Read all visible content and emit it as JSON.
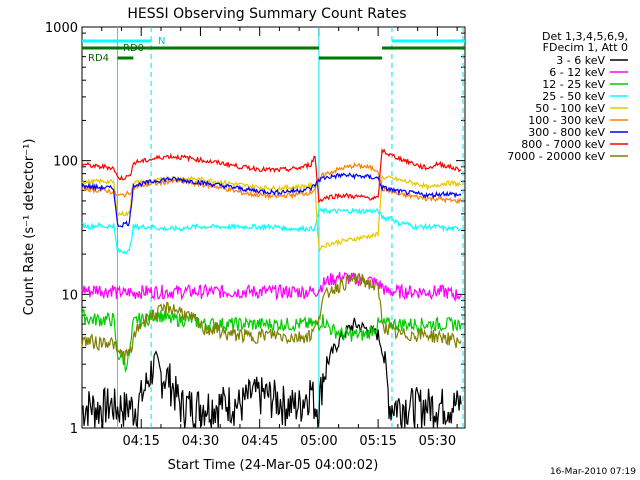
{
  "chart_data": {
    "type": "line",
    "title": "HESSI Observing Summary Count Rates",
    "xlabel": "Start Time (24-Mar-05 04:00:02)",
    "ylabel": "Count Rate (s⁻¹ detector⁻¹)",
    "yscale": "log",
    "ylim": [
      1,
      1000
    ],
    "xlim_minutes": [
      0,
      97
    ],
    "x_tick_labels": [
      "04:15",
      "04:30",
      "04:45",
      "05:00",
      "05:15",
      "05:30"
    ],
    "x_tick_minutes": [
      15,
      30,
      45,
      60,
      75,
      90
    ],
    "y_tick_labels": [
      "1",
      "10",
      "100",
      "1000"
    ],
    "y_tick_values": [
      1,
      10,
      100,
      1000
    ],
    "legend": {
      "header": [
        "Det 1,3,4,5,6,9,",
        "FDecim 1, Att 0"
      ],
      "placement": "right"
    },
    "x_minutes": [
      0,
      2,
      4,
      6,
      8,
      9,
      10,
      11,
      12,
      13,
      14,
      16,
      18,
      20,
      22,
      25,
      28,
      31,
      34,
      37,
      40,
      43,
      46,
      49,
      52,
      55,
      58,
      59,
      60,
      61,
      63,
      66,
      69,
      72,
      75,
      76,
      77,
      78,
      79,
      80,
      82,
      84,
      86,
      88,
      90,
      92,
      94,
      96
    ],
    "series": [
      {
        "name": "3 - 6 keV",
        "color": "#000000",
        "values": [
          1.4,
          1.5,
          1.4,
          1.5,
          1.5,
          1.4,
          1.5,
          1.4,
          1.5,
          1.4,
          1.5,
          2.0,
          3.0,
          2.5,
          2.4,
          1.5,
          1.5,
          1.5,
          1.5,
          1.6,
          1.5,
          1.8,
          1.8,
          1.7,
          1.5,
          1.5,
          2.0,
          1.5,
          1.5,
          2.5,
          3.5,
          5.0,
          6.0,
          5.5,
          5.0,
          4.0,
          2.5,
          1.5,
          1.5,
          1.5,
          1.5,
          1.5,
          1.5,
          1.5,
          1.5,
          1.5,
          1.5,
          1.5
        ]
      },
      {
        "name": "6 - 12 keV",
        "color": "#ff00ff",
        "values": [
          11,
          10.5,
          11,
          10.5,
          11,
          10,
          10.5,
          10,
          10.5,
          10,
          10.5,
          10.5,
          10.5,
          10.5,
          10.5,
          10.5,
          10.5,
          10.5,
          10.5,
          10.5,
          10.5,
          10.5,
          10.5,
          10.5,
          10.5,
          10.5,
          10.5,
          10.5,
          11,
          12,
          13,
          13.5,
          13,
          13,
          12,
          11.5,
          10.5,
          10.5,
          10.5,
          10.5,
          10.5,
          10.5,
          10.5,
          10.5,
          10.5,
          10.5,
          10,
          10
        ]
      },
      {
        "name": "12 - 25 keV",
        "color": "#00cc00",
        "values": [
          7,
          6.5,
          6.5,
          6.5,
          6.5,
          3.5,
          3.5,
          3.0,
          3.5,
          6,
          6.5,
          6.5,
          7,
          7,
          6.5,
          6.5,
          6.5,
          6,
          6,
          6,
          6,
          6,
          6,
          6,
          6,
          6,
          6,
          6,
          6,
          6.5,
          5.5,
          5,
          5,
          5,
          6,
          6,
          6,
          6,
          6,
          6,
          6,
          6,
          6,
          6,
          6,
          6,
          6,
          6
        ]
      },
      {
        "name": "25 - 50 keV",
        "color": "#00ffff",
        "values": [
          33,
          32,
          33,
          32,
          33,
          21,
          21,
          21,
          21,
          32,
          32,
          32,
          32,
          31,
          31,
          31,
          32,
          32,
          32,
          32,
          32,
          32,
          32,
          32,
          31,
          31,
          31,
          31,
          42,
          42,
          42,
          42,
          42,
          42,
          42,
          38,
          37,
          38,
          36,
          34,
          34,
          32,
          32,
          32,
          32,
          31,
          31,
          31
        ]
      },
      {
        "name": "50 - 100 keV",
        "color": "#e6c800",
        "values": [
          70,
          69,
          70,
          70,
          69,
          40,
          40,
          40,
          40,
          68,
          69,
          69,
          70,
          72,
          74,
          74,
          73,
          72,
          70,
          68,
          66,
          64,
          63,
          62,
          63,
          64,
          65,
          65,
          22,
          23,
          24,
          25,
          26,
          27,
          28,
          75,
          74,
          74,
          73,
          72,
          70,
          68,
          66,
          62,
          66,
          68,
          68,
          66
        ]
      },
      {
        "name": "100 - 300 keV",
        "color": "#ff8000",
        "values": [
          62,
          61,
          60,
          60,
          58,
          55,
          55,
          56,
          57,
          63,
          64,
          66,
          67,
          68,
          70,
          70,
          68,
          66,
          64,
          61,
          58,
          56,
          55,
          54,
          55,
          56,
          58,
          62,
          72,
          78,
          82,
          88,
          92,
          90,
          85,
          62,
          60,
          60,
          58,
          56,
          55,
          54,
          53,
          52,
          52,
          51,
          50,
          50
        ]
      },
      {
        "name": "300 - 800 keV",
        "color": "#0000ff",
        "values": [
          65,
          64,
          63,
          63,
          62,
          33,
          33,
          34,
          34,
          66,
          66,
          68,
          70,
          72,
          73,
          72,
          70,
          68,
          66,
          64,
          62,
          60,
          59,
          58,
          59,
          60,
          62,
          66,
          72,
          74,
          76,
          78,
          77,
          76,
          74,
          63,
          62,
          61,
          60,
          59,
          58,
          57,
          56,
          55,
          56,
          57,
          56,
          55
        ]
      },
      {
        "name": "800 - 7000 keV",
        "color": "#ff0000",
        "values": [
          95,
          92,
          90,
          90,
          88,
          75,
          74,
          75,
          76,
          95,
          98,
          100,
          103,
          106,
          108,
          106,
          104,
          100,
          97,
          94,
          90,
          88,
          86,
          85,
          86,
          88,
          94,
          110,
          50,
          52,
          54,
          55,
          54,
          53,
          52,
          120,
          115,
          110,
          108,
          105,
          100,
          95,
          90,
          88,
          95,
          92,
          88,
          85
        ]
      },
      {
        "name": "7000 - 20000 keV",
        "color": "#808000",
        "values": [
          4.5,
          4.5,
          4.3,
          4.5,
          4.3,
          3.6,
          3.6,
          3.5,
          3.6,
          4.5,
          5.5,
          6.5,
          7,
          7.5,
          8,
          7.5,
          6.5,
          5.5,
          5.5,
          5.0,
          5.0,
          4.8,
          5.0,
          5.0,
          4.8,
          4.8,
          5,
          5.5,
          7,
          9,
          11,
          12,
          13,
          12.5,
          11,
          6.5,
          5.5,
          5.5,
          5.2,
          5.0,
          5.0,
          5.0,
          5.0,
          5.0,
          4.8,
          4.8,
          4.5,
          4.5
        ]
      }
    ],
    "annotations": {
      "n_label": "N",
      "rd0_label": "RD0",
      "rd4_label": "RD4",
      "n_bars_minutes": [
        [
          0,
          17.5
        ],
        [
          78.5,
          97
        ]
      ],
      "rd0_bars_minutes": [
        [
          0,
          60
        ],
        [
          76,
          97
        ]
      ],
      "rd0_low_bar_minutes": [
        [
          60,
          76
        ]
      ],
      "rd4_bars_minutes": [
        [
          9,
          13
        ]
      ],
      "night_boundaries_minutes": [
        9,
        17.5,
        60,
        78.5,
        96.5
      ]
    }
  },
  "footer_timestamp": "16-Mar-2010 07:19"
}
